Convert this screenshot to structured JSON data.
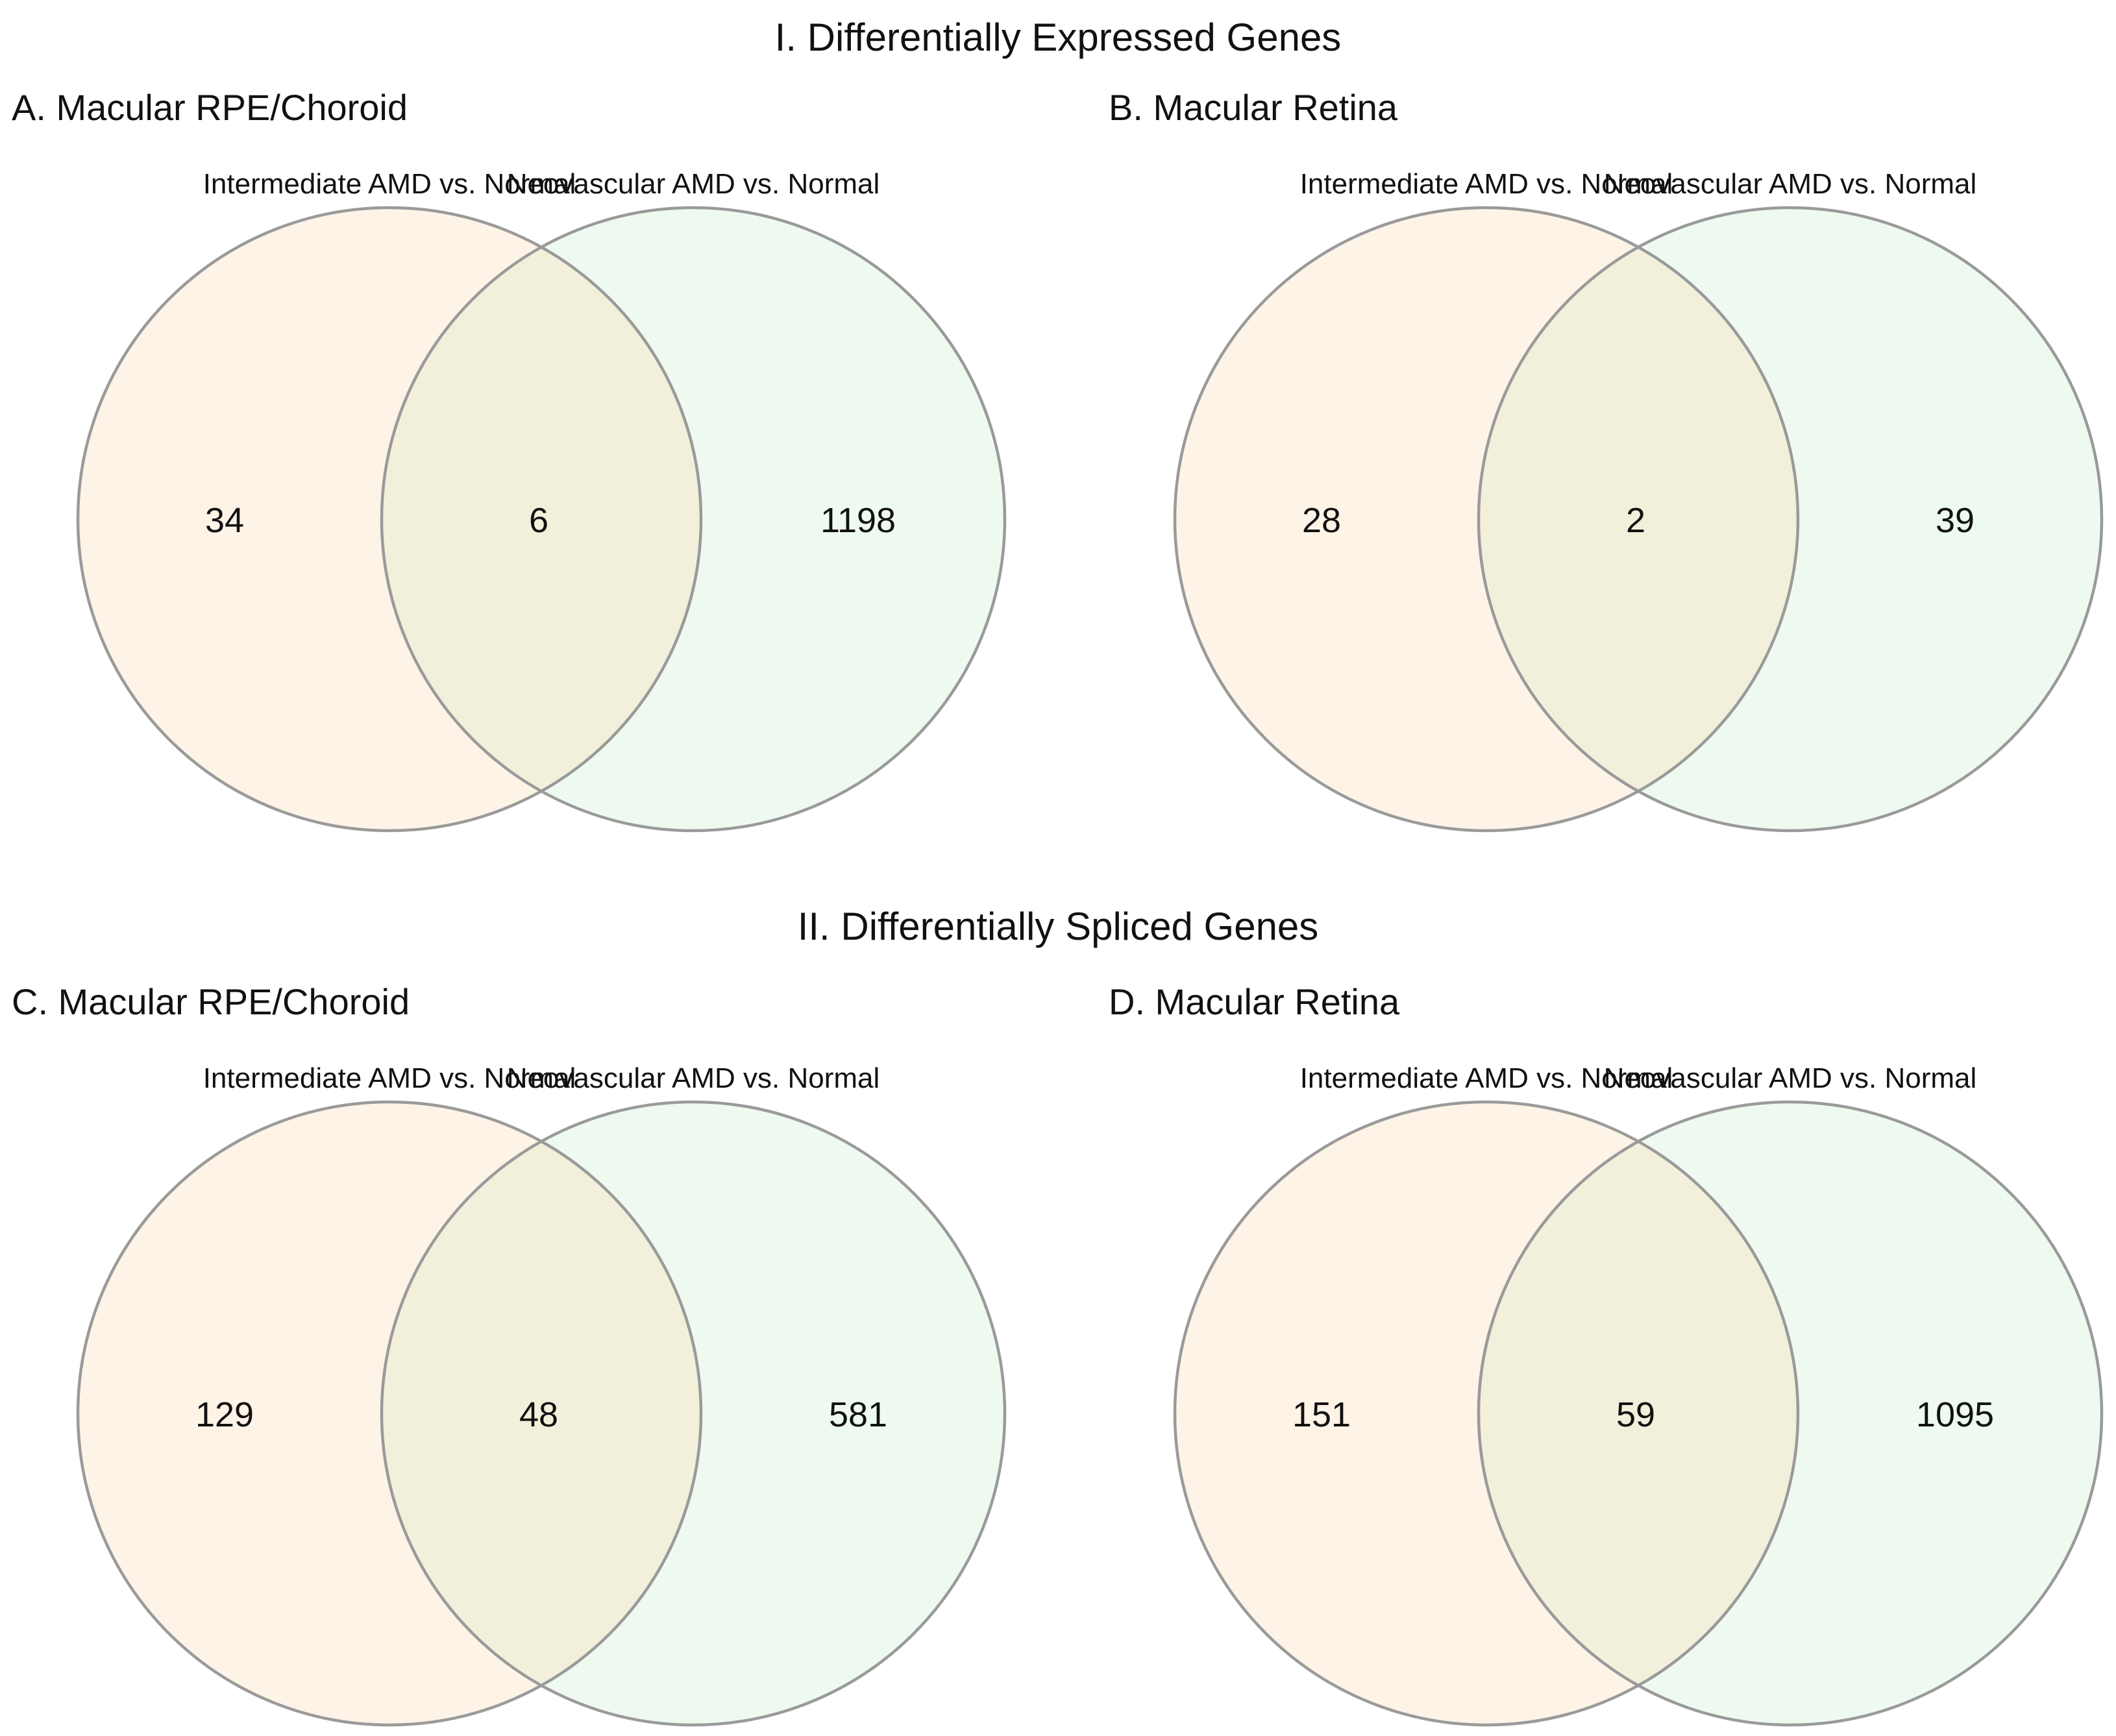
{
  "sections": [
    {
      "title": "I. Differentially Expressed Genes"
    },
    {
      "title": "II. Differentially Spliced Genes"
    }
  ],
  "colors": {
    "set_a": "#fdf3e6",
    "set_b": "#eefaf0",
    "overlap": "#f2efdb",
    "outline": "#9a9a9a"
  },
  "chart_data": [
    {
      "type": "venn",
      "panel": "A",
      "title": "A. Macular RPE/Choroid",
      "section": "I. Differentially Expressed Genes",
      "sets": [
        "Intermediate AMD vs. Normal",
        "Neovascular AMD vs. Normal"
      ],
      "values": {
        "only_a": 34,
        "both": 6,
        "only_b": 1198
      }
    },
    {
      "type": "venn",
      "panel": "B",
      "title": "B. Macular Retina",
      "section": "I. Differentially Expressed Genes",
      "sets": [
        "Intermediate AMD vs. Normal",
        "Neovascular AMD vs. Normal"
      ],
      "values": {
        "only_a": 28,
        "both": 2,
        "only_b": 39
      }
    },
    {
      "type": "venn",
      "panel": "C",
      "title": "C. Macular RPE/Choroid",
      "section": "II. Differentially Spliced Genes",
      "sets": [
        "Intermediate AMD vs. Normal",
        "Neovascular AMD vs. Normal"
      ],
      "values": {
        "only_a": 129,
        "both": 48,
        "only_b": 581
      }
    },
    {
      "type": "venn",
      "panel": "D",
      "title": "D. Macular Retina",
      "section": "II. Differentially Spliced Genes",
      "sets": [
        "Intermediate AMD vs. Normal",
        "Neovascular AMD vs. Normal"
      ],
      "values": {
        "only_a": 151,
        "both": 59,
        "only_b": 1095
      }
    }
  ]
}
